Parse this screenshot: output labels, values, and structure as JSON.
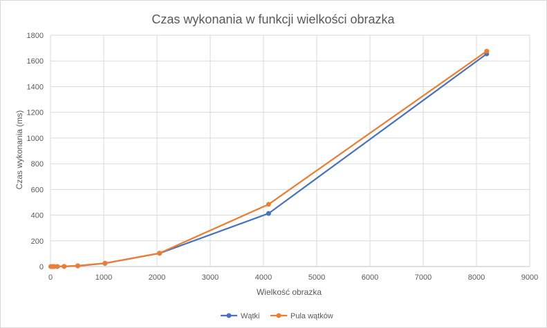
{
  "chart_data": {
    "type": "line",
    "title": "Czas wykonania w funkcji wielkości obrazka",
    "xlabel": "Wielkość obrazka",
    "ylabel": "Czas wykonania (ms)",
    "xlim": [
      0,
      9000
    ],
    "ylim": [
      0,
      1800
    ],
    "xticks": [
      0,
      1000,
      2000,
      3000,
      4000,
      5000,
      6000,
      7000,
      8000,
      9000
    ],
    "yticks": [
      0,
      200,
      400,
      600,
      800,
      1000,
      1200,
      1400,
      1600,
      1800
    ],
    "grid": "vertical and horizontal",
    "legend_position": "bottom",
    "series": [
      {
        "name": "Wątki",
        "color": "#4472c4",
        "x": [
          8,
          16,
          32,
          64,
          128,
          256,
          512,
          1024,
          2048,
          4096,
          8192
        ],
        "y": [
          0,
          0,
          0,
          0,
          0,
          1,
          5,
          25,
          103,
          413,
          1655
        ]
      },
      {
        "name": "Pula wątków",
        "color": "#ed7d31",
        "x": [
          8,
          16,
          32,
          64,
          128,
          256,
          512,
          1024,
          2048,
          4096,
          8192
        ],
        "y": [
          0,
          0,
          0,
          0,
          0,
          1,
          6,
          26,
          104,
          484,
          1676
        ]
      }
    ]
  }
}
